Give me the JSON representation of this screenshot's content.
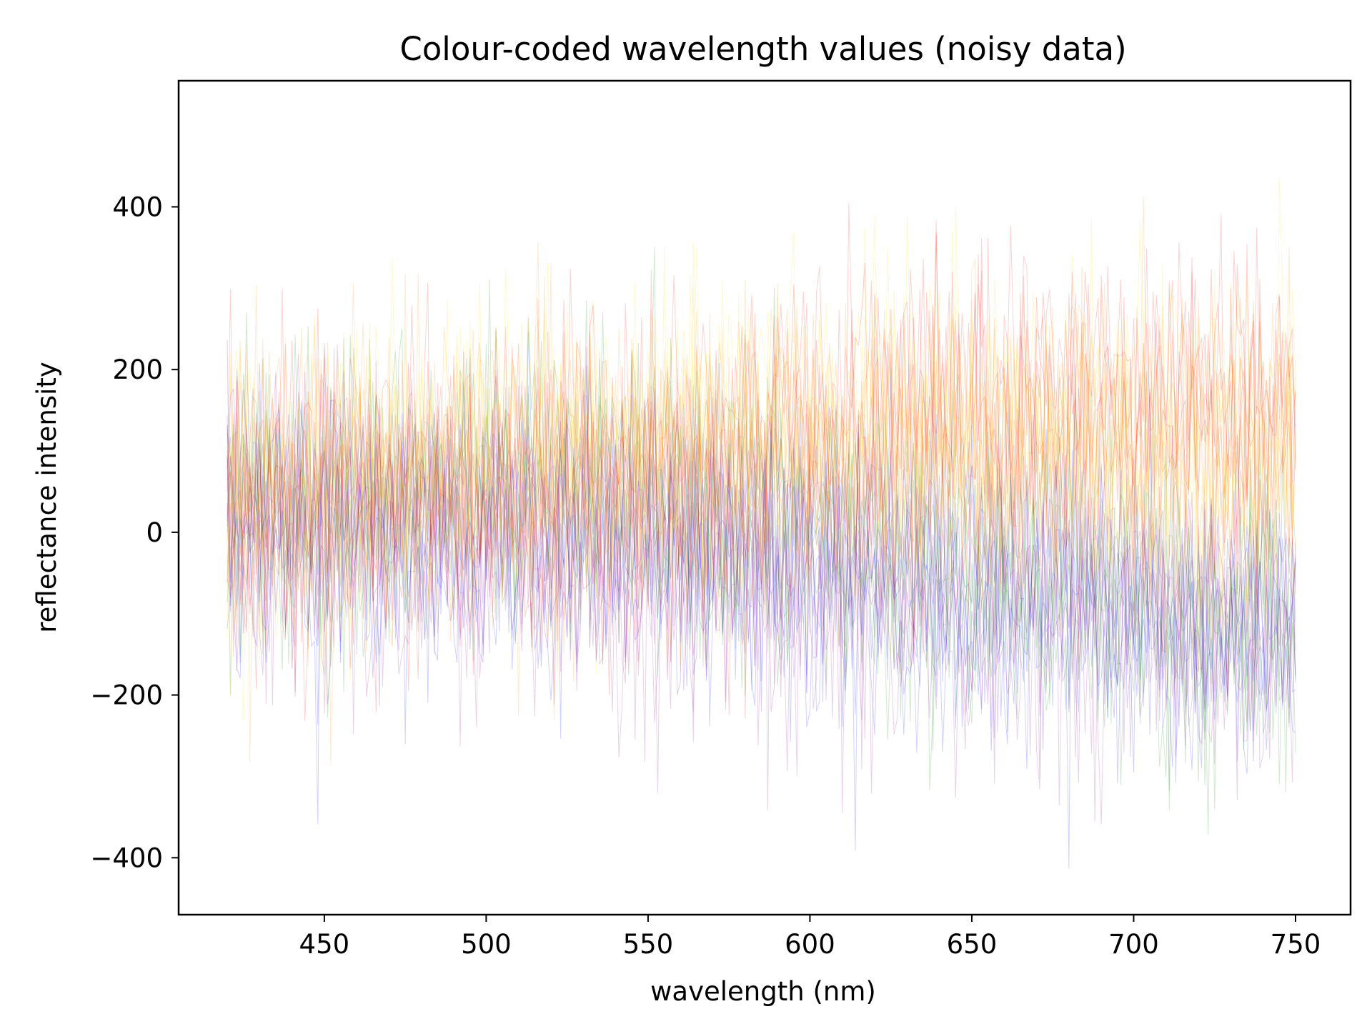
{
  "chart_data": {
    "type": "line",
    "title": "Colour-coded wavelength values (noisy data)",
    "xlabel": "wavelength (nm)",
    "ylabel": "reflectance intensity",
    "xlim": [
      405,
      767
    ],
    "ylim": [
      -470,
      555
    ],
    "x_ticks": [
      450,
      500,
      550,
      600,
      650,
      700,
      750
    ],
    "y_ticks": [
      -400,
      -200,
      0,
      200,
      400
    ],
    "x_tick_labels": [
      "450",
      "500",
      "550",
      "600",
      "650",
      "700",
      "750"
    ],
    "y_tick_labels": [
      "−400",
      "−200",
      "0",
      "200",
      "400"
    ],
    "grid": false,
    "legend": "none",
    "x_range": [
      420,
      750
    ],
    "series": [
      {
        "color": "#0000ff",
        "mean": [
          0,
          -10,
          -60,
          -130
        ],
        "at": [
          420,
          530,
          640,
          750
        ],
        "spread": 85
      },
      {
        "color": "#008000",
        "mean": [
          30,
          60,
          -30,
          -110
        ],
        "at": [
          420,
          530,
          640,
          750
        ],
        "spread": 90
      },
      {
        "color": "#ffd700",
        "mean": [
          40,
          110,
          130,
          90
        ],
        "at": [
          420,
          530,
          640,
          750
        ],
        "spread": 95
      },
      {
        "color": "#ff0000",
        "mean": [
          10,
          60,
          140,
          150
        ],
        "at": [
          420,
          530,
          640,
          750
        ],
        "spread": 95
      },
      {
        "color": "#ff8c00",
        "mean": [
          50,
          70,
          90,
          110
        ],
        "at": [
          420,
          530,
          640,
          750
        ],
        "spread": 95
      },
      {
        "color": "#8b008b",
        "mean": [
          40,
          -20,
          -80,
          -110
        ],
        "at": [
          420,
          530,
          640,
          750
        ],
        "spread": 90
      }
    ]
  }
}
